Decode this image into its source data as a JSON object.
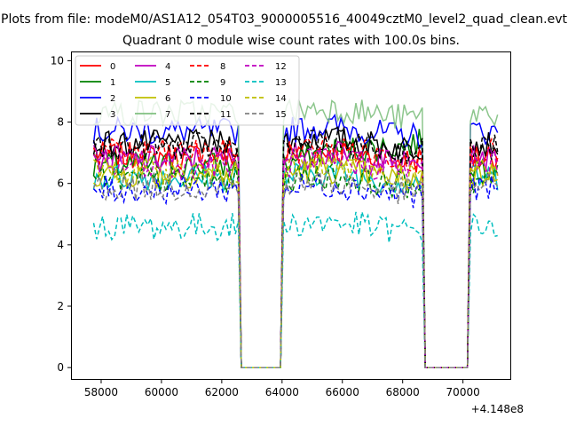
{
  "suptitle": "Plots from file: modeM0/AS1A12_054T03_9000005516_40049cztM0_level2_quad_clean.evt",
  "chart_data": {
    "type": "line",
    "title": "Quadrant 0 module wise count rates with 100.0s bins.",
    "xlabel": "",
    "ylabel": "",
    "x_offset_label": "+4.148e8",
    "x_range": [
      57000,
      71600
    ],
    "ylim": [
      -0.4,
      10.3
    ],
    "x_ticks": [
      58000,
      60000,
      62000,
      64000,
      66000,
      68000,
      70000
    ],
    "x_tick_labels": [
      "58000",
      "60000",
      "62000",
      "64000",
      "66000",
      "68000",
      "70000"
    ],
    "y_ticks": [
      0,
      2,
      4,
      6,
      8,
      10
    ],
    "y_tick_labels": [
      "0",
      "2",
      "4",
      "6",
      "8",
      "10"
    ],
    "grid": false,
    "legend_position": "top-left",
    "x_start": 57750,
    "bin": 100,
    "n_points": 135,
    "gaps": [
      [
        62650,
        63950
      ],
      [
        68750,
        70150
      ]
    ],
    "series": [
      {
        "name": "0",
        "color": "#ff0000",
        "dash": "solid",
        "base": 6.9
      },
      {
        "name": "1",
        "color": "#008000",
        "dash": "solid",
        "base": 6.6
      },
      {
        "name": "2",
        "color": "#0000ff",
        "dash": "solid",
        "base": 7.7
      },
      {
        "name": "3",
        "color": "#000000",
        "dash": "solid",
        "base": 7.3
      },
      {
        "name": "4",
        "color": "#bf00bf",
        "dash": "solid",
        "base": 6.8
      },
      {
        "name": "5",
        "color": "#00bfbf",
        "dash": "solid",
        "base": 6.2
      },
      {
        "name": "6",
        "color": "#bfbf00",
        "dash": "solid",
        "base": 6.3
      },
      {
        "name": "7",
        "color": "#80c080",
        "dash": "solid",
        "base": 8.3
      },
      {
        "name": "8",
        "color": "#ff0000",
        "dash": "dashed",
        "base": 7.0
      },
      {
        "name": "9",
        "color": "#008000",
        "dash": "dashed",
        "base": 6.1
      },
      {
        "name": "10",
        "color": "#0000ff",
        "dash": "dashed",
        "base": 5.8
      },
      {
        "name": "11",
        "color": "#000000",
        "dash": "dashed",
        "base": 7.2
      },
      {
        "name": "12",
        "color": "#bf00bf",
        "dash": "dashed",
        "base": 6.6
      },
      {
        "name": "13",
        "color": "#00bfbf",
        "dash": "dashed",
        "base": 4.6
      },
      {
        "name": "14",
        "color": "#bfbf00",
        "dash": "dashed",
        "base": 6.4
      },
      {
        "name": "15",
        "color": "#808080",
        "dash": "dashed",
        "base": 5.9
      }
    ]
  }
}
